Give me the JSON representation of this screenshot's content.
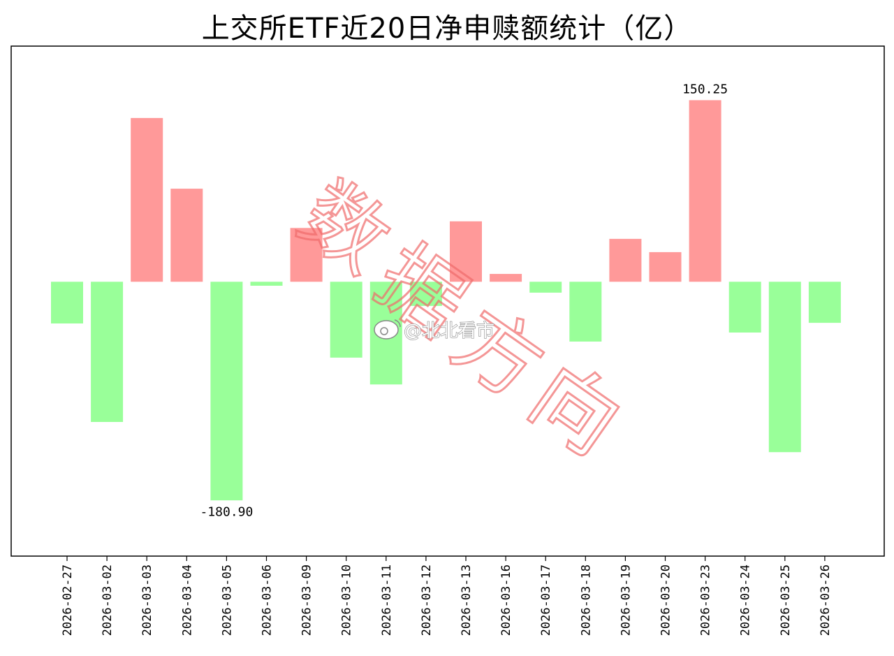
{
  "chart_data": {
    "type": "bar",
    "title": "上交所ETF近20日净申赎额统计（亿）",
    "xlabel": "",
    "ylabel": "",
    "categories": [
      "2026-02-27",
      "2026-03-02",
      "2026-03-03",
      "2026-03-04",
      "2026-03-05",
      "2026-03-06",
      "2026-03-09",
      "2026-03-10",
      "2026-03-11",
      "2026-03-12",
      "2026-03-13",
      "2026-03-16",
      "2026-03-17",
      "2026-03-18",
      "2026-03-19",
      "2026-03-20",
      "2026-03-23",
      "2026-03-24",
      "2026-03-25",
      "2026-03-26"
    ],
    "values": [
      -34.5,
      -116.0,
      135.5,
      77.0,
      -180.9,
      -3.3,
      44.5,
      -62.8,
      -85.0,
      -20.0,
      50.0,
      6.5,
      -9.0,
      -49.5,
      35.5,
      24.5,
      150.25,
      -42.0,
      -141.0,
      -34.0
    ],
    "ylim": [
      -227,
      195
    ],
    "grid": false,
    "legend": "none",
    "colors": {
      "positive": "#ff9999",
      "negative": "#99ff99"
    },
    "annotations": [
      {
        "category": "2026-03-23",
        "text": "150.25"
      },
      {
        "category": "2026-03-05",
        "text": "-180.90"
      }
    ]
  },
  "watermark": {
    "text": "数据方向",
    "color": "#f06b6b"
  },
  "weibo_handle": {
    "icon": "weibo-icon",
    "text": "@北北看市"
  }
}
